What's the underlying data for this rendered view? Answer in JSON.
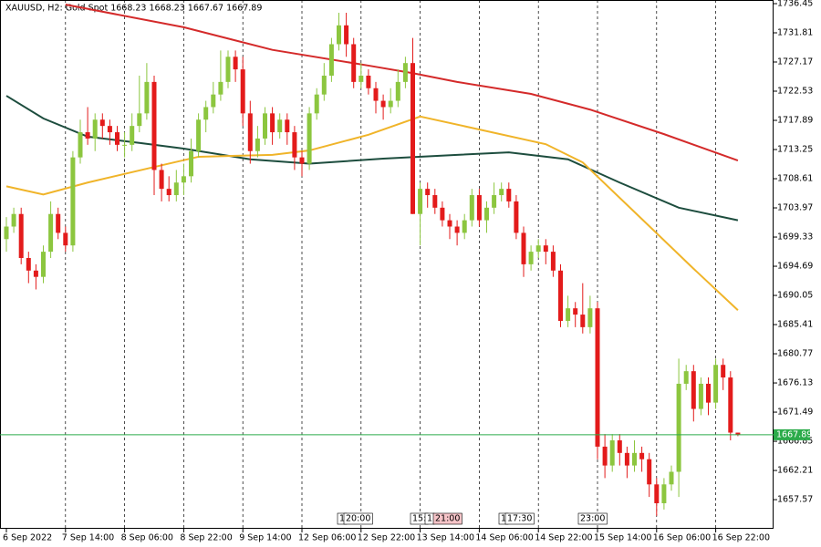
{
  "chart_data": {
    "type": "candlestick",
    "title": "XAUUSD, H2:  Gold Spot  1668.23 1668.23 1667.67 1667.89",
    "categories": [
      "6 Sep 2022",
      null,
      null,
      null,
      null,
      null,
      null,
      null,
      "7 Sep 14:00",
      null,
      null,
      null,
      null,
      null,
      null,
      null,
      "8 Sep 06:00",
      null,
      null,
      null,
      null,
      null,
      null,
      null,
      "8 Sep 22:00",
      null,
      null,
      null,
      null,
      null,
      null,
      null,
      "9 Sep 14:00",
      null,
      null,
      null,
      null,
      null,
      null,
      null,
      "12 Sep 06:00",
      null,
      null,
      null,
      null,
      null,
      null,
      null,
      "12 Sep 22:00",
      null,
      null,
      null,
      null,
      null,
      null,
      null,
      "13 Sep 14:00",
      null,
      null,
      null,
      null,
      null,
      null,
      null,
      "14 Sep 06:00",
      null,
      null,
      null,
      null,
      null,
      null,
      null,
      "14 Sep 22:00",
      null,
      null,
      null,
      null,
      null,
      null,
      null,
      "15 Sep 14:00",
      null,
      null,
      null,
      null,
      null,
      null,
      null,
      "16 Sep 06:00",
      null,
      null,
      null,
      null,
      null,
      null,
      null,
      "16 Sep 22:00",
      null,
      null,
      null
    ],
    "open": [
      1699,
      1701,
      1703,
      1696,
      1694,
      1693,
      1697,
      1703,
      1700,
      1698,
      1712,
      1716,
      1715,
      1718,
      1717,
      1716,
      1714,
      1714,
      1717,
      1719,
      1724,
      1710,
      1707,
      1706,
      1708,
      1709,
      1713,
      1718,
      1720,
      1722,
      1724,
      1728,
      1726,
      1719,
      1713,
      1715,
      1719,
      1716,
      1718,
      1716,
      1712,
      1711,
      1719,
      1722,
      1725,
      1730,
      1733,
      1730,
      1724,
      1725,
      1723,
      1721,
      1720,
      1721,
      1724,
      1727,
      1703,
      1707,
      1706,
      1704,
      1702,
      1701,
      1700,
      1702,
      1706,
      1702,
      1704,
      1706,
      1707,
      1705,
      1700,
      1695,
      1697,
      1698,
      1697,
      1694,
      1686,
      1688,
      1687,
      1685,
      1688,
      1666,
      1663,
      1667,
      1665,
      1663,
      1665,
      1664,
      1660,
      1657,
      1660,
      1662,
      1676,
      1678,
      1672,
      1676,
      1673,
      1679,
      1677,
      1668.23
    ],
    "high": [
      1702.5,
      1704,
      1704,
      1697,
      1695,
      1698,
      1705,
      1704,
      1701,
      1713,
      1718,
      1720,
      1719,
      1719,
      1718,
      1717,
      1716,
      1719,
      1725,
      1727,
      1725,
      1711,
      1709,
      1710,
      1711,
      1715,
      1719,
      1721,
      1724,
      1729,
      1729,
      1729,
      1728,
      1721,
      1717,
      1720,
      1720,
      1719,
      1719,
      1717,
      1713,
      1720,
      1723,
      1727,
      1731,
      1735,
      1735,
      1731,
      1727,
      1726,
      1724,
      1722,
      1723,
      1726,
      1728,
      1731,
      1708,
      1708,
      1707,
      1705,
      1703,
      1702,
      1703,
      1707,
      1707,
      1705,
      1708,
      1708,
      1708,
      1706,
      1701,
      1698,
      1699,
      1699,
      1698,
      1695,
      1690,
      1689,
      1692,
      1690,
      1689,
      1668,
      1668,
      1668,
      1666,
      1667,
      1666,
      1665,
      1661,
      1661,
      1663,
      1680,
      1679,
      1679,
      1677,
      1677,
      1680,
      1680,
      1678,
      1668.23
    ],
    "low": [
      1697,
      1700,
      1695,
      1692,
      1691,
      1692,
      1696,
      1699,
      1697,
      1697,
      1711,
      1714,
      1713,
      1715,
      1714,
      1713,
      1712,
      1713,
      1716,
      1718,
      1706,
      1705,
      1705,
      1705,
      1706,
      1708,
      1712,
      1716,
      1719,
      1721,
      1723,
      1724,
      1717,
      1711,
      1712,
      1714,
      1714,
      1715,
      1714,
      1710,
      1709,
      1710,
      1718,
      1721,
      1724,
      1729,
      1728,
      1723,
      1723,
      1722,
      1719,
      1718,
      1719,
      1720,
      1723,
      1703,
      1698,
      1704,
      1703,
      1701,
      1699,
      1698,
      1699,
      1701,
      1701,
      1700,
      1703,
      1705,
      1704,
      1699,
      1693,
      1694,
      1696,
      1695,
      1693,
      1685,
      1685,
      1685,
      1684,
      1684,
      1664,
      1661,
      1662,
      1663,
      1661,
      1662,
      1662,
      1658,
      1655,
      1656,
      1659,
      1658,
      1675,
      1670,
      1671,
      1671,
      1672,
      1675,
      1667,
      1667.67
    ],
    "close": [
      1701,
      1703,
      1696,
      1694,
      1693,
      1697,
      1703,
      1700,
      1698,
      1712,
      1716,
      1715,
      1718,
      1717,
      1716,
      1714,
      1714,
      1717,
      1719,
      1724,
      1710,
      1707,
      1706,
      1708,
      1709,
      1713,
      1718,
      1720,
      1722,
      1724,
      1728,
      1726,
      1719,
      1713,
      1715,
      1719,
      1716,
      1718,
      1716,
      1712,
      1711,
      1719,
      1722,
      1725,
      1730,
      1733,
      1730,
      1724,
      1725,
      1723,
      1721,
      1720,
      1721,
      1724,
      1727,
      1703,
      1707,
      1706,
      1704,
      1702,
      1701,
      1700,
      1702,
      1706,
      1702,
      1704,
      1706,
      1707,
      1705,
      1700,
      1695,
      1697,
      1698,
      1697,
      1694,
      1686,
      1688,
      1687,
      1685,
      1688,
      1666,
      1663,
      1667,
      1665,
      1663,
      1665,
      1664,
      1660,
      1657,
      1660,
      1662,
      1676,
      1678,
      1672,
      1676,
      1673,
      1679,
      1677,
      1668.23,
      1667.89
    ],
    "up_color": "#8cc63f",
    "down_color": "#e31b1b",
    "series": [
      {
        "color": "#d42a2a",
        "x": [
          8,
          24,
          36,
          49,
          55,
          61,
          71,
          79,
          89,
          99
        ],
        "values": [
          1736.3,
          1732.7,
          1729.1,
          1726.6,
          1725.4,
          1724,
          1722.1,
          1719.6,
          1715.7,
          1711.5
        ]
      },
      {
        "color": "#1d4d3e",
        "x": [
          0,
          5,
          11,
          18,
          24,
          33,
          41,
          51,
          61,
          68,
          76,
          83,
          91,
          99
        ],
        "values": [
          1721.8,
          1718.2,
          1715.3,
          1714.3,
          1713.4,
          1711.7,
          1711,
          1711.8,
          1712.4,
          1712.8,
          1711.7,
          1708,
          1704,
          1702
        ]
      },
      {
        "color": "#f0b429",
        "x": [
          0,
          5,
          11,
          19,
          26,
          36,
          41,
          49,
          56,
          63,
          73,
          78,
          86,
          93,
          99
        ],
        "values": [
          1707.4,
          1706.1,
          1708,
          1710.2,
          1712.1,
          1712.4,
          1713.1,
          1715.6,
          1718.5,
          1716.7,
          1714.1,
          1711.2,
          1702.2,
          1694.3,
          1687.7
        ]
      }
    ],
    "current_price": 1667.89,
    "current_price_color": "#2bab4a",
    "time_markers": [
      "1",
      "20:00",
      "15:",
      "1",
      "21:00",
      "1",
      "17:30",
      "23:00"
    ],
    "ylim": [
      1652.94,
      1737.03
    ],
    "yticks": [
      1736.45,
      1731.81,
      1727.17,
      1722.53,
      1717.89,
      1713.25,
      1708.61,
      1703.97,
      1699.33,
      1694.69,
      1690.05,
      1685.41,
      1680.77,
      1676.13,
      1671.49,
      1666.85,
      1662.21,
      1657.57
    ],
    "grid": true
  }
}
